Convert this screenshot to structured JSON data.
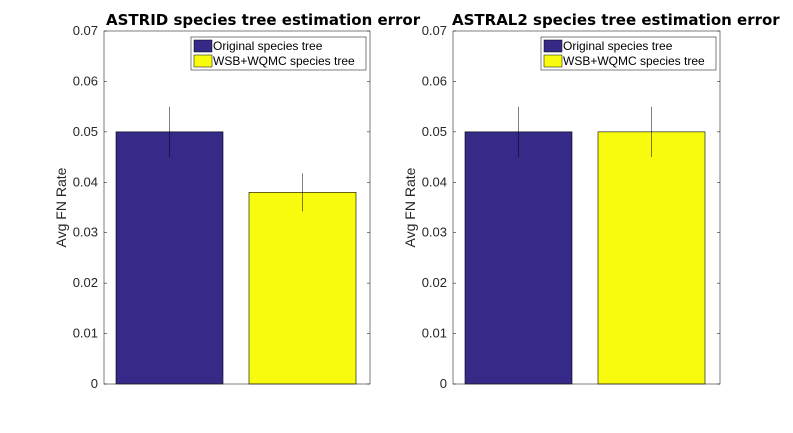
{
  "chart_data": [
    {
      "type": "bar",
      "title": "ASTRID species tree estimation error",
      "xlabel": "",
      "ylabel": "Avg FN Rate",
      "ylim": [
        0,
        0.07
      ],
      "yticks": [
        "0",
        "0.01",
        "0.02",
        "0.03",
        "0.04",
        "0.05",
        "0.06",
        "0.07"
      ],
      "grid": false,
      "legend_position": "top-right",
      "series": [
        {
          "name": "Original species tree",
          "value": 0.05,
          "error": 0.005,
          "color": "#352a87"
        },
        {
          "name": "WSB+WQMC species tree",
          "value": 0.038,
          "error": 0.0038,
          "color": "#f9fb0e"
        }
      ]
    },
    {
      "type": "bar",
      "title": "ASTRAL2 species tree estimation error",
      "xlabel": "",
      "ylabel": "Avg FN Rate",
      "ylim": [
        0,
        0.07
      ],
      "yticks": [
        "0",
        "0.01",
        "0.02",
        "0.03",
        "0.04",
        "0.05",
        "0.06",
        "0.07"
      ],
      "grid": false,
      "legend_position": "top-right",
      "series": [
        {
          "name": "Original species tree",
          "value": 0.05,
          "error": 0.005,
          "color": "#352a87"
        },
        {
          "name": "WSB+WQMC species tree",
          "value": 0.05,
          "error": 0.005,
          "color": "#f9fb0e"
        }
      ]
    }
  ]
}
